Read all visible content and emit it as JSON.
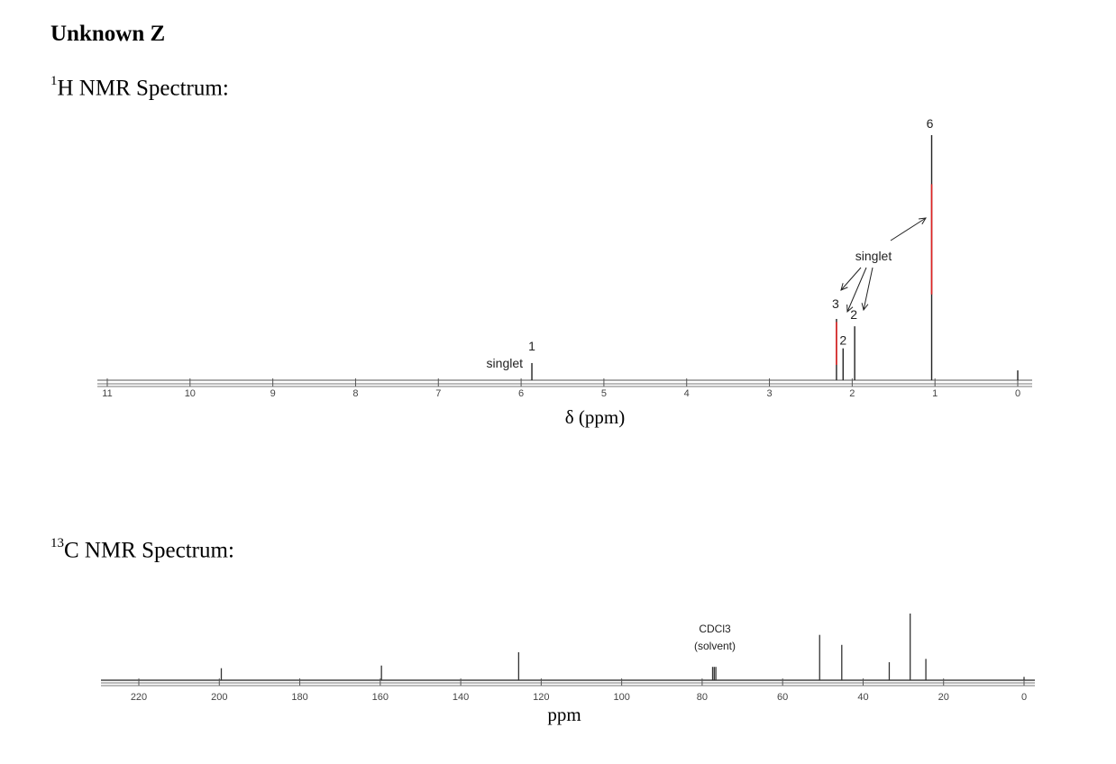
{
  "title": "Unknown Z",
  "h_heading": {
    "sup": "1",
    "text": "H NMR Spectrum:"
  },
  "c_heading": {
    "sup": "13",
    "text": "C NMR Spectrum:"
  },
  "chart_data": [
    {
      "type": "line",
      "name": "1H NMR spectrum",
      "xlabel": "δ (ppm)",
      "xlim": [
        11,
        0
      ],
      "x_ticks": [
        11,
        10,
        9,
        8,
        7,
        6,
        5,
        4,
        3,
        2,
        1,
        0
      ],
      "peaks": [
        {
          "ppm": 5.87,
          "height": 0.07,
          "integration": "1",
          "label": "singlet"
        },
        {
          "ppm": 2.19,
          "height": 0.25,
          "integration": "3",
          "label": "singlet"
        },
        {
          "ppm": 2.11,
          "height": 0.13,
          "integration": "2",
          "label": ""
        },
        {
          "ppm": 1.97,
          "height": 0.22,
          "integration": "2",
          "label": "singlet"
        },
        {
          "ppm": 1.04,
          "height": 1.0,
          "integration": "6",
          "label": "singlet"
        },
        {
          "ppm": 0.0,
          "height": 0.04,
          "integration": "",
          "label": ""
        }
      ],
      "annotation": "singlet",
      "integrated_color": "#e02020"
    },
    {
      "type": "line",
      "name": "13C NMR spectrum",
      "xlabel": "ppm",
      "xlim": [
        228,
        -2
      ],
      "x_ticks": [
        220,
        200,
        180,
        160,
        140,
        120,
        100,
        80,
        60,
        40,
        20,
        0
      ],
      "peaks": [
        {
          "ppm": 199.5,
          "height": 0.18
        },
        {
          "ppm": 159.7,
          "height": 0.22
        },
        {
          "ppm": 125.6,
          "height": 0.42
        },
        {
          "ppm": 77.4,
          "height": 0.2
        },
        {
          "ppm": 77.0,
          "height": 0.2
        },
        {
          "ppm": 76.6,
          "height": 0.2
        },
        {
          "ppm": 50.8,
          "height": 0.68
        },
        {
          "ppm": 45.3,
          "height": 0.53
        },
        {
          "ppm": 33.5,
          "height": 0.27
        },
        {
          "ppm": 28.3,
          "height": 1.0
        },
        {
          "ppm": 24.4,
          "height": 0.32
        },
        {
          "ppm": 0.0,
          "height": 0.05
        }
      ],
      "solvent_label": "CDCl3",
      "solvent_note": "(solvent)"
    }
  ]
}
